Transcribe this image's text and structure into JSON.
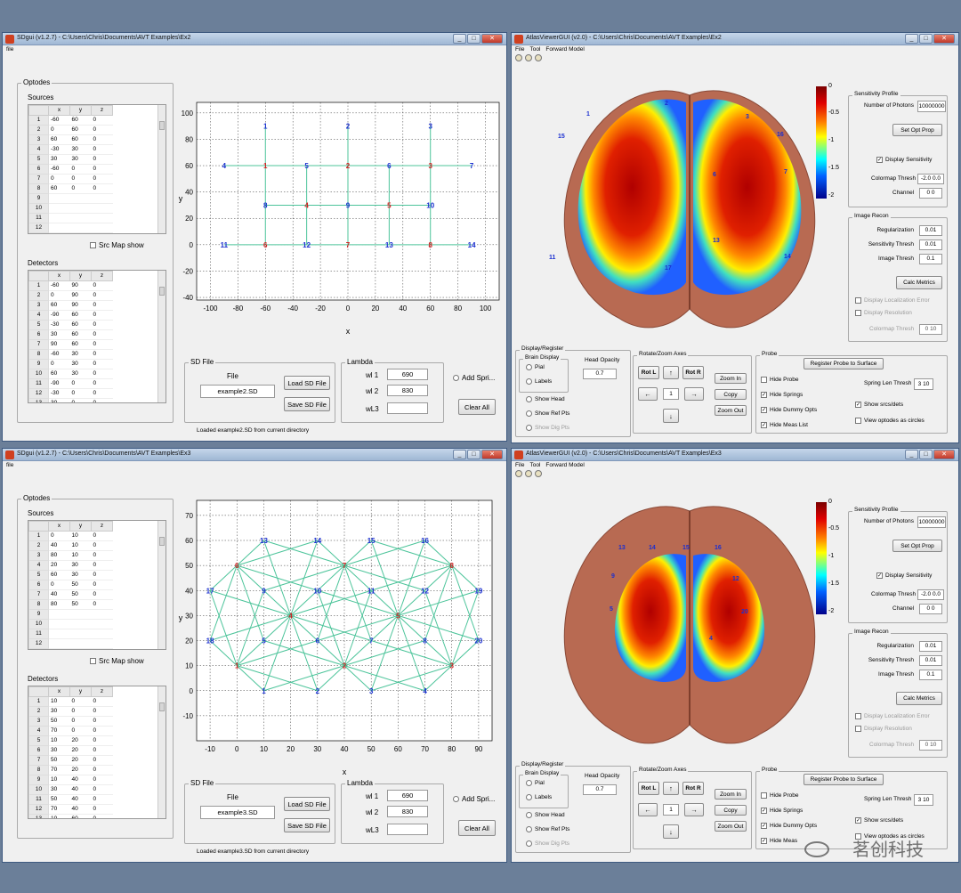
{
  "sd_windows": [
    {
      "title": "SDgui  (v1.2.7) - C:\\Users\\Chris\\Documents\\AVT Examples\\Ex2",
      "menu": "file",
      "optodes_label": "Optodes",
      "sources_label": "Sources",
      "detectors_label": "Detectors",
      "cols": [
        "x",
        "y",
        "z"
      ],
      "sources": [
        [
          "1",
          "-60",
          "60",
          "0"
        ],
        [
          "2",
          "0",
          "60",
          "0"
        ],
        [
          "3",
          "60",
          "60",
          "0"
        ],
        [
          "4",
          "-30",
          "30",
          "0"
        ],
        [
          "5",
          "30",
          "30",
          "0"
        ],
        [
          "6",
          "-60",
          "0",
          "0"
        ],
        [
          "7",
          "0",
          "0",
          "0"
        ],
        [
          "8",
          "60",
          "0",
          "0"
        ],
        [
          "9",
          "",
          "",
          ""
        ],
        [
          "10",
          "",
          "",
          ""
        ],
        [
          "11",
          "",
          "",
          ""
        ],
        [
          "12",
          "",
          "",
          ""
        ]
      ],
      "detectors": [
        [
          "1",
          "-60",
          "90",
          "0"
        ],
        [
          "2",
          "0",
          "90",
          "0"
        ],
        [
          "3",
          "60",
          "90",
          "0"
        ],
        [
          "4",
          "-90",
          "60",
          "0"
        ],
        [
          "5",
          "-30",
          "60",
          "0"
        ],
        [
          "6",
          "30",
          "60",
          "0"
        ],
        [
          "7",
          "90",
          "60",
          "0"
        ],
        [
          "8",
          "-60",
          "30",
          "0"
        ],
        [
          "9",
          "0",
          "30",
          "0"
        ],
        [
          "10",
          "60",
          "30",
          "0"
        ],
        [
          "11",
          "-90",
          "0",
          "0"
        ],
        [
          "12",
          "-30",
          "0",
          "0"
        ],
        [
          "13",
          "30",
          "0",
          "0"
        ]
      ],
      "src_map": "Src Map show",
      "sd_file_label": "SD File",
      "file_label": "File",
      "file_name": "example2.SD",
      "load_btn": "Load SD File",
      "save_btn": "Save SD File",
      "lambda_label": "Lambda",
      "wl1_label": "wl 1",
      "wl1": "690",
      "wl2_label": "wl 2",
      "wl2": "830",
      "wl3_label": "wL3",
      "wl3": "",
      "add_spring": "Add Spri...",
      "clear_all": "Clear All",
      "status": "Loaded example2.SD from current directory",
      "xlabel": "x",
      "ylabel": "y",
      "xticks": [
        "-100",
        "-80",
        "-60",
        "-40",
        "-20",
        "0",
        "20",
        "40",
        "60",
        "80",
        "100"
      ],
      "yticks": [
        "100",
        "80",
        "60",
        "40",
        "20",
        "0",
        "-20",
        "-40"
      ]
    },
    {
      "title": "SDgui  (v1.2.7) - C:\\Users\\Chris\\Documents\\AVT Examples\\Ex3",
      "menu": "file",
      "optodes_label": "Optodes",
      "sources_label": "Sources",
      "detectors_label": "Detectors",
      "cols": [
        "x",
        "y",
        "z"
      ],
      "sources": [
        [
          "1",
          "0",
          "10",
          "0"
        ],
        [
          "2",
          "40",
          "10",
          "0"
        ],
        [
          "3",
          "80",
          "10",
          "0"
        ],
        [
          "4",
          "20",
          "30",
          "0"
        ],
        [
          "5",
          "60",
          "30",
          "0"
        ],
        [
          "6",
          "0",
          "50",
          "0"
        ],
        [
          "7",
          "40",
          "50",
          "0"
        ],
        [
          "8",
          "80",
          "50",
          "0"
        ],
        [
          "9",
          "",
          "",
          ""
        ],
        [
          "10",
          "",
          "",
          ""
        ],
        [
          "11",
          "",
          "",
          ""
        ],
        [
          "12",
          "",
          "",
          ""
        ]
      ],
      "detectors": [
        [
          "1",
          "10",
          "0",
          "0"
        ],
        [
          "2",
          "30",
          "0",
          "0"
        ],
        [
          "3",
          "50",
          "0",
          "0"
        ],
        [
          "4",
          "70",
          "0",
          "0"
        ],
        [
          "5",
          "10",
          "20",
          "0"
        ],
        [
          "6",
          "30",
          "20",
          "0"
        ],
        [
          "7",
          "50",
          "20",
          "0"
        ],
        [
          "8",
          "70",
          "20",
          "0"
        ],
        [
          "9",
          "10",
          "40",
          "0"
        ],
        [
          "10",
          "30",
          "40",
          "0"
        ],
        [
          "11",
          "50",
          "40",
          "0"
        ],
        [
          "12",
          "70",
          "40",
          "0"
        ],
        [
          "13",
          "10",
          "60",
          "0"
        ]
      ],
      "src_map": "Src Map show",
      "sd_file_label": "SD File",
      "file_label": "File",
      "file_name": "example3.SD",
      "load_btn": "Load SD File",
      "save_btn": "Save SD File",
      "lambda_label": "Lambda",
      "wl1_label": "wl 1",
      "wl1": "690",
      "wl2_label": "wl 2",
      "wl2": "830",
      "wl3_label": "wL3",
      "wl3": "",
      "add_spring": "Add Spri...",
      "clear_all": "Clear All",
      "status": "Loaded example3.SD from current directory",
      "xlabel": "x",
      "ylabel": "y",
      "xticks": [
        "-10",
        "0",
        "10",
        "20",
        "30",
        "40",
        "50",
        "60",
        "70",
        "80",
        "90"
      ],
      "yticks": [
        "70",
        "60",
        "50",
        "40",
        "30",
        "20",
        "10",
        "0",
        "-10"
      ]
    }
  ],
  "atlas_windows": [
    {
      "title": "AtlasViewerGUI  (v2.0) - C:\\Users\\Chris\\Documents\\AVT Examples\\Ex2",
      "menu": [
        "File",
        "Tool",
        "Forward Model"
      ],
      "colorbar_ticks": [
        "0",
        "-0.5",
        "-1",
        "-1.5",
        "-2"
      ],
      "sensitivity_profile": "Sensitivity Profile",
      "num_photons_label": "Number of Photons",
      "num_photons": "10000000",
      "set_opt_prop": "Set Opt Prop",
      "display_sensitivity": "Display Sensitivity",
      "colormap_thresh_label": "Colormap Thresh",
      "colormap_thresh": "-2.0 0.0",
      "channel_label": "Channel",
      "channel": "0 0",
      "image_recon": "Image Recon",
      "regularization_label": "Regularization",
      "regularization": "0.01",
      "sens_thresh_label": "Sensitivity Thresh",
      "sens_thresh": "0.01",
      "image_thresh_label": "Image Thresh",
      "image_thresh": "0.1",
      "calc_metrics": "Calc Metrics",
      "disp_loc_err": "Display Localization Error",
      "disp_resolution": "Display Resolution",
      "cm_thresh2_label": "Colormap Thresh",
      "cm_thresh2": "0 10",
      "display_register": "Display/Register",
      "brain_display": "Brain Display",
      "pial": "Pial",
      "labels": "Labels",
      "head_opacity_label": "Head Opacity",
      "head_opacity": "0.7",
      "show_head": "Show Head",
      "show_ref_pts": "Show Ref Pts",
      "show_dig_pts": "Show Dig Pts",
      "rotate_zoom": "Rotate/Zoom Axes",
      "rot_l": "Rot L",
      "rot_r": "Rot R",
      "step": "1",
      "zoom_in": "Zoom In",
      "copy": "Copy",
      "zoom_out": "Zoom Out",
      "probe": "Probe",
      "register_probe": "Register Probe to Surface",
      "hide_probe": "Hide Probe",
      "hide_springs": "Hide Springs",
      "hide_dummy": "Hide Dummy Opts",
      "hide_meas": "Hide Meas List",
      "spring_len_label": "Spring Len Thresh",
      "spring_len": "3 10",
      "show_srcs_dets": "Show srcs/dets",
      "view_optodes": "View optodes as circles",
      "labels_on_brain": [
        [
          "1",
          "84",
          "93"
        ],
        [
          "2",
          "172",
          "81"
        ],
        [
          "3",
          "263",
          "96"
        ],
        [
          "15",
          "52",
          "118"
        ],
        [
          "16",
          "298",
          "116"
        ],
        [
          "4",
          "36",
          "155"
        ],
        [
          "7",
          "306",
          "158"
        ],
        [
          "6",
          "226",
          "161"
        ],
        [
          "11",
          "42",
          "254"
        ],
        [
          "17",
          "172",
          "266"
        ],
        [
          "14",
          "306",
          "253"
        ],
        [
          "13",
          "226",
          "235"
        ]
      ]
    },
    {
      "title": "AtlasViewerGUI  (v2.0) - C:\\Users\\Chris\\Documents\\AVT Examples\\Ex3",
      "menu": [
        "File",
        "Tool",
        "Forward Model"
      ],
      "colorbar_ticks": [
        "0",
        "-0.5",
        "-1",
        "-1.5",
        "-2"
      ],
      "sensitivity_profile": "Sensitivity Profile",
      "num_photons_label": "Number of Photons",
      "num_photons": "10000000",
      "set_opt_prop": "Set Opt Prop",
      "display_sensitivity": "Display Sensitivity",
      "colormap_thresh_label": "Colormap Thresh",
      "colormap_thresh": "-2.0 0.0",
      "channel_label": "Channel",
      "channel": "0 0",
      "image_recon": "Image Recon",
      "regularization_label": "Regularization",
      "regularization": "0.01",
      "sens_thresh_label": "Sensitivity Thresh",
      "sens_thresh": "0.01",
      "image_thresh_label": "Image Thresh",
      "image_thresh": "0.1",
      "calc_metrics": "Calc Metrics",
      "disp_loc_err": "Display Localization Error",
      "disp_resolution": "Display Resolution",
      "cm_thresh2_label": "Colormap Thresh",
      "cm_thresh2": "0 10",
      "display_register": "Display/Register",
      "brain_display": "Brain Display",
      "pial": "Pial",
      "labels": "Labels",
      "head_opacity_label": "Head Opacity",
      "head_opacity": "0.7",
      "show_head": "Show Head",
      "show_ref_pts": "Show Ref Pts",
      "show_dig_pts": "Show Dig Pts",
      "rotate_zoom": "Rotate/Zoom Axes",
      "rot_l": "Rot L",
      "rot_r": "Rot R",
      "step": "1",
      "zoom_in": "Zoom In",
      "copy": "Copy",
      "zoom_out": "Zoom Out",
      "probe": "Probe",
      "register_probe": "Register Probe to Surface",
      "hide_probe": "Hide Probe",
      "hide_springs": "Hide Springs",
      "hide_dummy": "Hide Dummy Opts",
      "hide_meas": "Hide Meas",
      "spring_len_label": "Spring Len Thresh",
      "spring_len": "3 10",
      "show_srcs_dets": "Show srcs/dets",
      "view_optodes": "View optodes as circles",
      "labels_on_brain": [
        [
          "13",
          "120",
          "113"
        ],
        [
          "14",
          "154",
          "113"
        ],
        [
          "15",
          "192",
          "113"
        ],
        [
          "16",
          "228",
          "113"
        ],
        [
          "9",
          "112",
          "145"
        ],
        [
          "12",
          "248",
          "148"
        ],
        [
          "5",
          "110",
          "182"
        ],
        [
          "20",
          "258",
          "185"
        ],
        [
          "4",
          "222",
          "215"
        ]
      ]
    }
  ],
  "watermark": "茗创科技"
}
